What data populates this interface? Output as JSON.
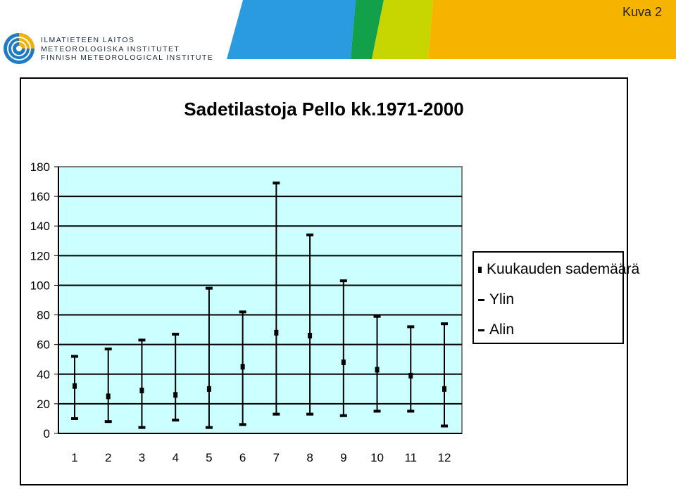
{
  "header": {
    "slide_label": "Kuva 2",
    "institute_lines": [
      "ILMATIETEEN LAITOS",
      "METEOROLOGISKA INSTITUTET",
      "FINNISH METEOROLOGICAL INSTITUTE"
    ],
    "colors": {
      "blue": "#2a9be0",
      "green": "#12a04a",
      "lime": "#c8d600",
      "yellow": "#f6b400"
    }
  },
  "legend": {
    "items": [
      {
        "label": "Kuukauden sademäärä",
        "marker": "square"
      },
      {
        "label": "Ylin",
        "marker": "dash"
      },
      {
        "label": "Alin",
        "marker": "dash"
      }
    ]
  },
  "chart_data": {
    "type": "high-low-average",
    "title": "Sadetilastoja  Pello kk.1971-2000",
    "categories": [
      "1",
      "2",
      "3",
      "4",
      "5",
      "6",
      "7",
      "8",
      "9",
      "10",
      "11",
      "12"
    ],
    "series": [
      {
        "name": "Kuukauden sademäärä",
        "values": [
          32,
          25,
          29,
          26,
          30,
          45,
          68,
          66,
          48,
          43,
          39,
          30
        ]
      },
      {
        "name": "Ylin",
        "values": [
          52,
          57,
          63,
          67,
          98,
          82,
          169,
          134,
          103,
          79,
          72,
          74
        ]
      },
      {
        "name": "Alin",
        "values": [
          10,
          8,
          4,
          9,
          4,
          6,
          13,
          13,
          12,
          15,
          15,
          5
        ]
      }
    ],
    "ylim": [
      0,
      180
    ],
    "yticks": [
      0,
      20,
      40,
      60,
      80,
      100,
      120,
      140,
      160,
      180
    ],
    "grid": true,
    "legend_position": "right",
    "plot_background": "#ccffff"
  }
}
